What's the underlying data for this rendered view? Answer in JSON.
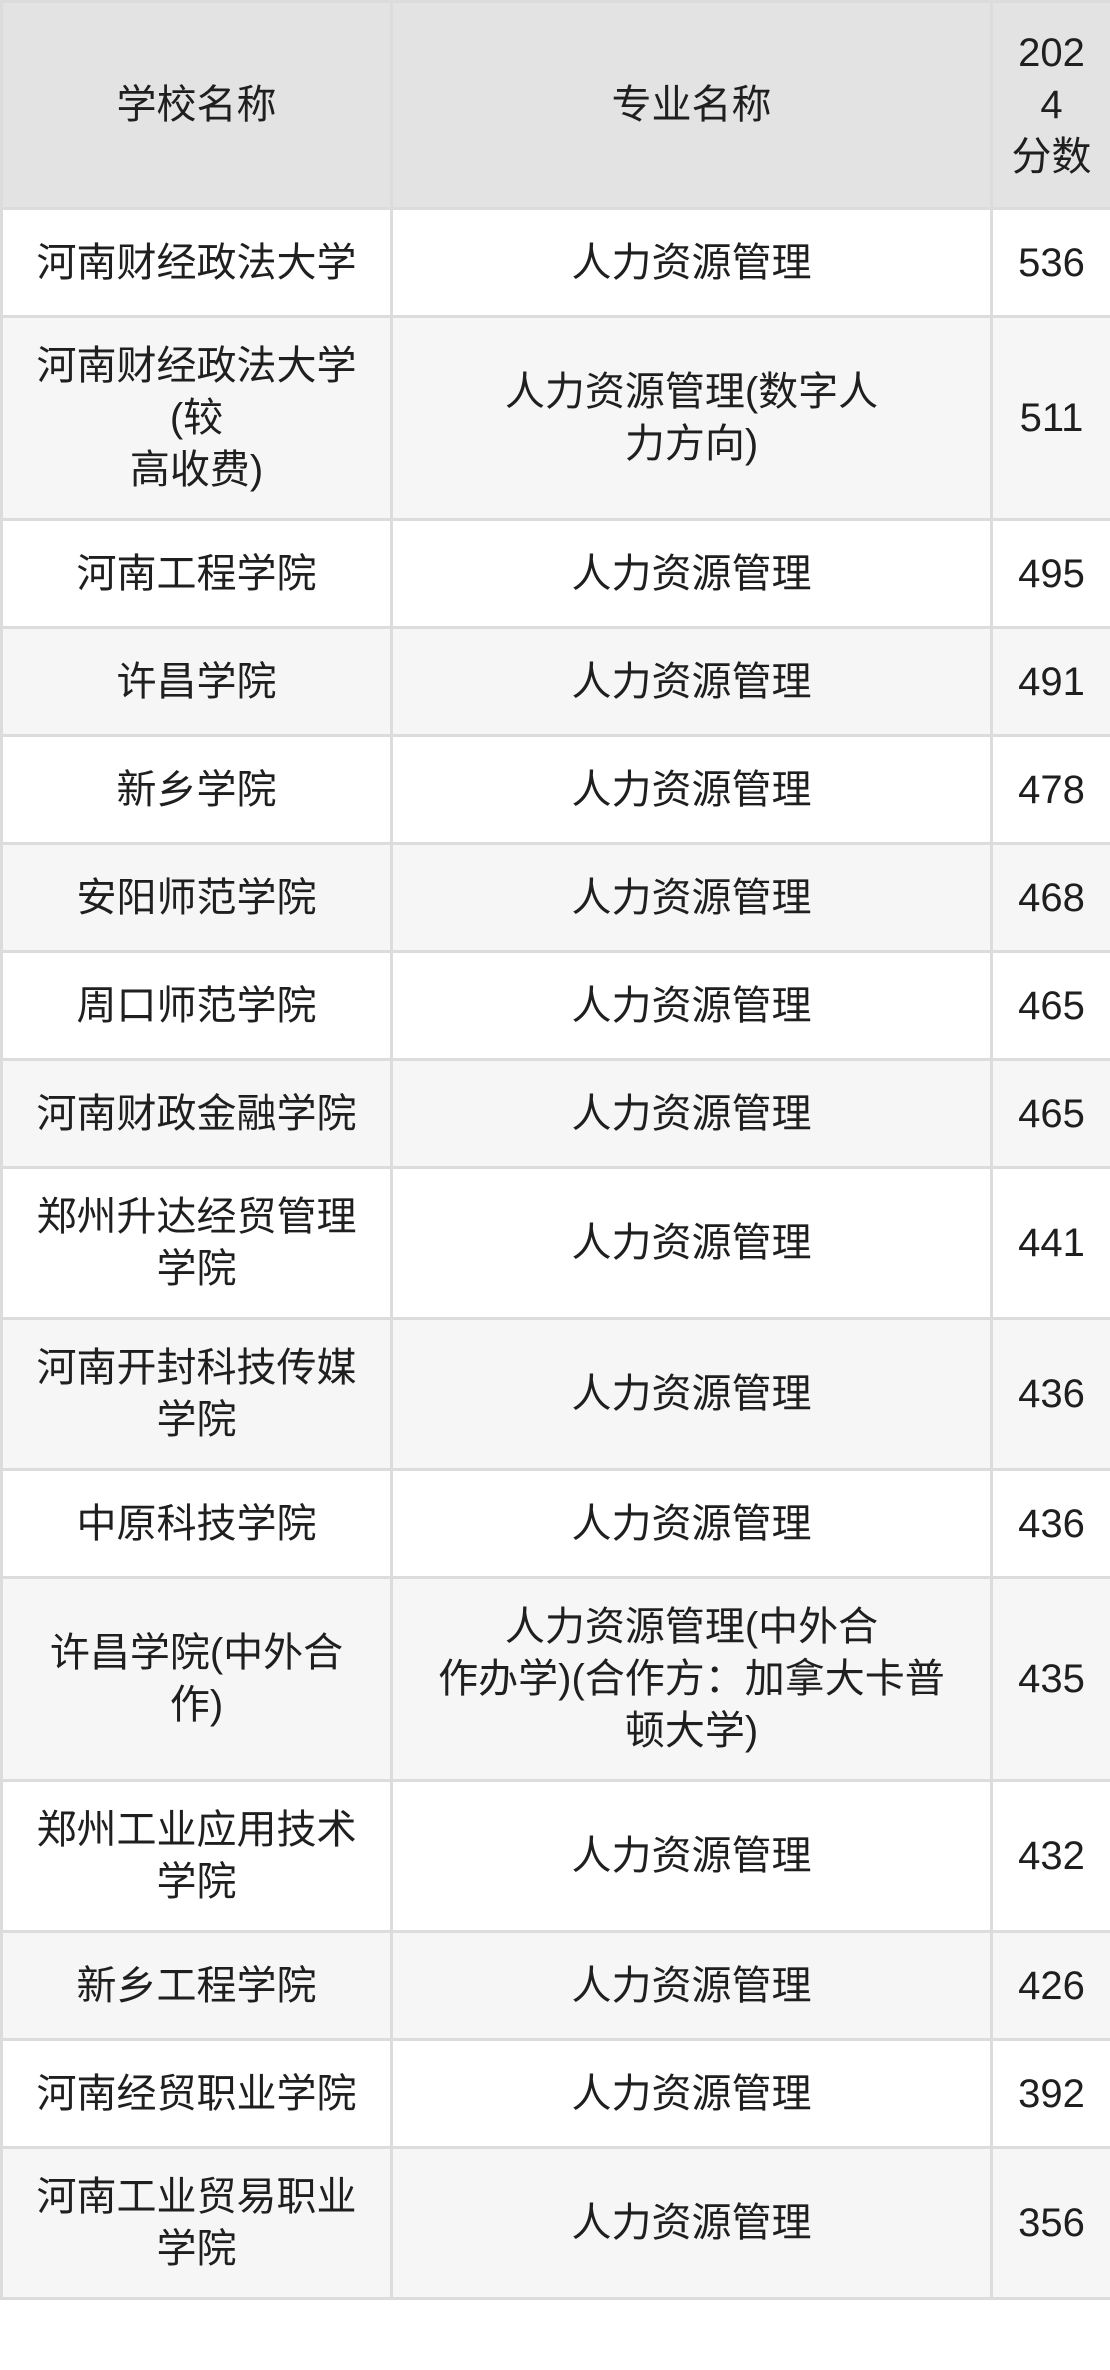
{
  "colors": {
    "header_bg": "#e3e3e3",
    "row_bg": "#ffffff",
    "row_alt_bg": "#f6f6f6",
    "border": "#dcdcdc",
    "text": "#1f1f1f"
  },
  "table": {
    "headers": {
      "school": "学校名称",
      "major": "专业名称",
      "score": "202\n4\n分数"
    },
    "rows": [
      {
        "school": "河南财经政法大学",
        "major": "人力资源管理",
        "score": "536"
      },
      {
        "school": "河南财经政法大学\n(较\n高收费)",
        "major": "人力资源管理(数字人\n力方向)",
        "score": "511"
      },
      {
        "school": "河南工程学院",
        "major": "人力资源管理",
        "score": "495"
      },
      {
        "school": "许昌学院",
        "major": "人力资源管理",
        "score": "491"
      },
      {
        "school": "新乡学院",
        "major": "人力资源管理",
        "score": "478"
      },
      {
        "school": "安阳师范学院",
        "major": "人力资源管理",
        "score": "468"
      },
      {
        "school": "周口师范学院",
        "major": "人力资源管理",
        "score": "465"
      },
      {
        "school": "河南财政金融学院",
        "major": "人力资源管理",
        "score": "465"
      },
      {
        "school": "郑州升达经贸管理\n学院",
        "major": "人力资源管理",
        "score": "441"
      },
      {
        "school": "河南开封科技传媒\n学院",
        "major": "人力资源管理",
        "score": "436"
      },
      {
        "school": "中原科技学院",
        "major": "人力资源管理",
        "score": "436"
      },
      {
        "school": "许昌学院(中外合\n作)",
        "major": "人力资源管理(中外合\n作办学)(合作方：加拿大卡普\n顿大学)",
        "score": "435"
      },
      {
        "school": "郑州工业应用技术\n学院",
        "major": "人力资源管理",
        "score": "432"
      },
      {
        "school": "新乡工程学院",
        "major": "人力资源管理",
        "score": "426"
      },
      {
        "school": "河南经贸职业学院",
        "major": "人力资源管理",
        "score": "392"
      },
      {
        "school": "河南工业贸易职业\n学院",
        "major": "人力资源管理",
        "score": "356"
      }
    ]
  }
}
